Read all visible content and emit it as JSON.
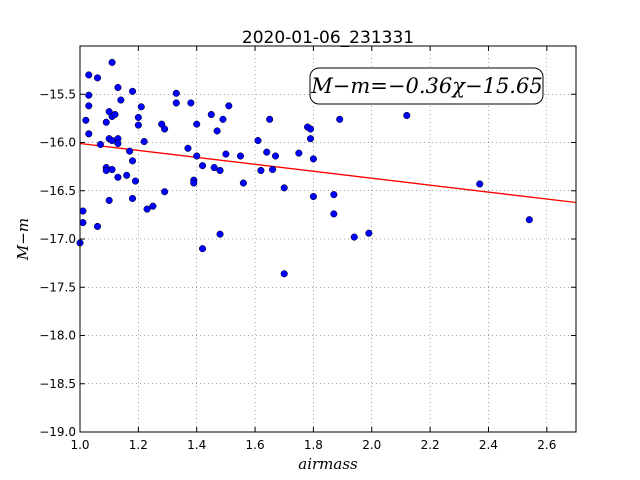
{
  "chart_data": {
    "type": "scatter",
    "title": "2020-01-06_231331",
    "xlabel": "airmass",
    "ylabel": "M−m",
    "annotation": "M−m=−0.36χ−15.65",
    "xlim": [
      1.0,
      2.7
    ],
    "ylim": [
      -19.0,
      -15.0
    ],
    "y_inverted": true,
    "grid": true,
    "x_ticks": [
      "1.0",
      "1.2",
      "1.4",
      "1.6",
      "1.8",
      "2.0",
      "2.2",
      "2.4",
      "2.6"
    ],
    "y_ticks": [
      "−15.5",
      "−16.0",
      "−16.5",
      "−17.0",
      "−17.5",
      "−18.0",
      "−18.5",
      "−19.0"
    ],
    "x_tick_values": [
      1.0,
      1.2,
      1.4,
      1.6,
      1.8,
      2.0,
      2.2,
      2.4,
      2.6
    ],
    "y_tick_values": [
      -15.5,
      -16.0,
      -16.5,
      -17.0,
      -17.5,
      -18.0,
      -18.5,
      -19.0
    ],
    "marker_color": "#0000ff",
    "line_color": "#ff0000",
    "fit": {
      "slope": -0.36,
      "intercept": -15.65
    },
    "points": [
      {
        "x": 1.0,
        "y": -17.04
      },
      {
        "x": 1.01,
        "y": -16.71
      },
      {
        "x": 1.01,
        "y": -16.83
      },
      {
        "x": 1.02,
        "y": -15.77
      },
      {
        "x": 1.03,
        "y": -15.3
      },
      {
        "x": 1.03,
        "y": -15.51
      },
      {
        "x": 1.03,
        "y": -15.62
      },
      {
        "x": 1.03,
        "y": -15.91
      },
      {
        "x": 1.06,
        "y": -15.33
      },
      {
        "x": 1.06,
        "y": -16.87
      },
      {
        "x": 1.07,
        "y": -16.02
      },
      {
        "x": 1.09,
        "y": -15.79
      },
      {
        "x": 1.09,
        "y": -16.26
      },
      {
        "x": 1.09,
        "y": -16.29
      },
      {
        "x": 1.1,
        "y": -15.68
      },
      {
        "x": 1.1,
        "y": -16.6
      },
      {
        "x": 1.1,
        "y": -15.96
      },
      {
        "x": 1.11,
        "y": -15.17
      },
      {
        "x": 1.11,
        "y": -15.73
      },
      {
        "x": 1.11,
        "y": -16.28
      },
      {
        "x": 1.11,
        "y": -15.98
      },
      {
        "x": 1.12,
        "y": -15.71
      },
      {
        "x": 1.13,
        "y": -15.43
      },
      {
        "x": 1.13,
        "y": -15.96
      },
      {
        "x": 1.13,
        "y": -16.01
      },
      {
        "x": 1.13,
        "y": -16.36
      },
      {
        "x": 1.14,
        "y": -15.56
      },
      {
        "x": 1.16,
        "y": -16.34
      },
      {
        "x": 1.17,
        "y": -16.09
      },
      {
        "x": 1.18,
        "y": -15.47
      },
      {
        "x": 1.18,
        "y": -16.19
      },
      {
        "x": 1.18,
        "y": -16.58
      },
      {
        "x": 1.19,
        "y": -16.4
      },
      {
        "x": 1.2,
        "y": -15.74
      },
      {
        "x": 1.2,
        "y": -15.82
      },
      {
        "x": 1.21,
        "y": -15.63
      },
      {
        "x": 1.22,
        "y": -15.99
      },
      {
        "x": 1.23,
        "y": -16.69
      },
      {
        "x": 1.25,
        "y": -16.66
      },
      {
        "x": 1.28,
        "y": -15.81
      },
      {
        "x": 1.29,
        "y": -15.86
      },
      {
        "x": 1.29,
        "y": -16.51
      },
      {
        "x": 1.33,
        "y": -15.49
      },
      {
        "x": 1.33,
        "y": -15.59
      },
      {
        "x": 1.37,
        "y": -16.06
      },
      {
        "x": 1.38,
        "y": -15.59
      },
      {
        "x": 1.39,
        "y": -16.39
      },
      {
        "x": 1.39,
        "y": -16.42
      },
      {
        "x": 1.4,
        "y": -15.81
      },
      {
        "x": 1.4,
        "y": -16.14
      },
      {
        "x": 1.42,
        "y": -17.1
      },
      {
        "x": 1.42,
        "y": -16.24
      },
      {
        "x": 1.45,
        "y": -15.71
      },
      {
        "x": 1.46,
        "y": -16.26
      },
      {
        "x": 1.47,
        "y": -15.88
      },
      {
        "x": 1.48,
        "y": -16.95
      },
      {
        "x": 1.48,
        "y": -16.29
      },
      {
        "x": 1.49,
        "y": -15.76
      },
      {
        "x": 1.5,
        "y": -16.12
      },
      {
        "x": 1.51,
        "y": -15.62
      },
      {
        "x": 1.55,
        "y": -16.14
      },
      {
        "x": 1.56,
        "y": -16.42
      },
      {
        "x": 1.61,
        "y": -15.98
      },
      {
        "x": 1.62,
        "y": -16.29
      },
      {
        "x": 1.64,
        "y": -16.1
      },
      {
        "x": 1.65,
        "y": -15.76
      },
      {
        "x": 1.66,
        "y": -16.28
      },
      {
        "x": 1.67,
        "y": -16.14
      },
      {
        "x": 1.7,
        "y": -16.47
      },
      {
        "x": 1.7,
        "y": -17.36
      },
      {
        "x": 1.75,
        "y": -16.11
      },
      {
        "x": 1.78,
        "y": -15.84
      },
      {
        "x": 1.79,
        "y": -15.86
      },
      {
        "x": 1.79,
        "y": -15.96
      },
      {
        "x": 1.8,
        "y": -16.17
      },
      {
        "x": 1.8,
        "y": -16.56
      },
      {
        "x": 1.87,
        "y": -16.54
      },
      {
        "x": 1.87,
        "y": -16.74
      },
      {
        "x": 1.89,
        "y": -15.76
      },
      {
        "x": 1.94,
        "y": -16.98
      },
      {
        "x": 1.99,
        "y": -16.94
      },
      {
        "x": 2.12,
        "y": -15.72
      },
      {
        "x": 2.37,
        "y": -16.43
      },
      {
        "x": 2.54,
        "y": -16.8
      }
    ]
  }
}
